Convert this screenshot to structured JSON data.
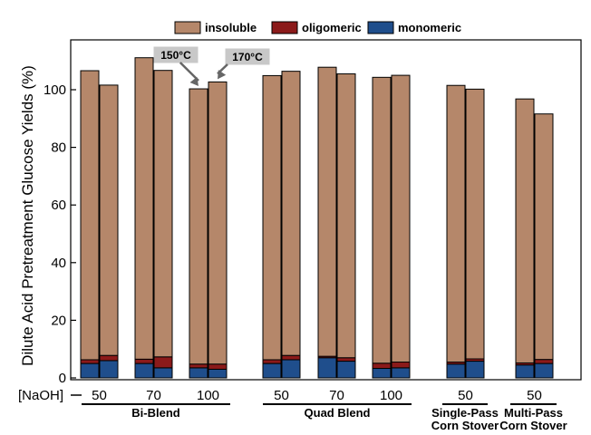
{
  "chart_data": {
    "type": "bar",
    "stacked": true,
    "ylabel": "Dilute Acid Pretreatment Glucose Yields (%)",
    "ylim": [
      0,
      115
    ],
    "yticks": [
      0,
      20,
      40,
      60,
      80,
      100
    ],
    "legend": {
      "placement": "top",
      "entries": [
        {
          "name": "insoluble",
          "color": "#b5876a"
        },
        {
          "name": "oligomeric",
          "color": "#8b1a1a"
        },
        {
          "name": "monomeric",
          "color": "#1f4e8c"
        }
      ]
    },
    "naoh_label": "[NaOH]",
    "bars": [
      {
        "group": "Bi-Blend",
        "naoh": "50",
        "temp": "150",
        "monomeric": 5.0,
        "oligomeric": 1.3,
        "insoluble": 100.3
      },
      {
        "group": "Bi-Blend",
        "naoh": "50",
        "temp": "170",
        "monomeric": 6.0,
        "oligomeric": 1.8,
        "insoluble": 93.8
      },
      {
        "group": "Bi-Blend",
        "naoh": "70",
        "temp": "150",
        "monomeric": 5.0,
        "oligomeric": 1.5,
        "insoluble": 104.6
      },
      {
        "group": "Bi-Blend",
        "naoh": "70",
        "temp": "170",
        "monomeric": 3.5,
        "oligomeric": 3.8,
        "insoluble": 99.4
      },
      {
        "group": "Bi-Blend",
        "naoh": "100",
        "temp": "150",
        "monomeric": 3.5,
        "oligomeric": 1.3,
        "insoluble": 95.5
      },
      {
        "group": "Bi-Blend",
        "naoh": "100",
        "temp": "170",
        "monomeric": 3.0,
        "oligomeric": 1.8,
        "insoluble": 97.9
      },
      {
        "group": "Quad Blend",
        "naoh": "50",
        "temp": "150",
        "monomeric": 5.0,
        "oligomeric": 1.3,
        "insoluble": 98.6
      },
      {
        "group": "Quad Blend",
        "naoh": "50",
        "temp": "170",
        "monomeric": 6.3,
        "oligomeric": 1.5,
        "insoluble": 98.6
      },
      {
        "group": "Quad Blend",
        "naoh": "70",
        "temp": "150",
        "monomeric": 7.0,
        "oligomeric": 0.5,
        "insoluble": 100.3
      },
      {
        "group": "Quad Blend",
        "naoh": "70",
        "temp": "170",
        "monomeric": 5.8,
        "oligomeric": 1.2,
        "insoluble": 98.5
      },
      {
        "group": "Quad Blend",
        "naoh": "100",
        "temp": "150",
        "monomeric": 3.3,
        "oligomeric": 1.8,
        "insoluble": 99.2
      },
      {
        "group": "Quad Blend",
        "naoh": "100",
        "temp": "170",
        "monomeric": 3.5,
        "oligomeric": 2.0,
        "insoluble": 99.5
      },
      {
        "group": "Single-Pass Corn Stover",
        "naoh": "50",
        "temp": "150",
        "monomeric": 4.8,
        "oligomeric": 0.7,
        "insoluble": 96.0
      },
      {
        "group": "Single-Pass Corn Stover",
        "naoh": "50",
        "temp": "170",
        "monomeric": 5.8,
        "oligomeric": 0.8,
        "insoluble": 93.6
      },
      {
        "group": "Multi-Pass Corn Stover",
        "naoh": "50",
        "temp": "150",
        "monomeric": 4.5,
        "oligomeric": 0.7,
        "insoluble": 91.6
      },
      {
        "group": "Multi-Pass Corn Stover",
        "naoh": "50",
        "temp": "170",
        "monomeric": 5.0,
        "oligomeric": 1.4,
        "insoluble": 85.2
      }
    ],
    "groups": [
      {
        "lines": [
          "Bi-Blend"
        ]
      },
      {
        "lines": [
          "Quad Blend"
        ]
      },
      {
        "lines": [
          "Single-Pass",
          "Corn Stover"
        ]
      },
      {
        "lines": [
          "Multi-Pass",
          "Corn Stover"
        ]
      }
    ],
    "naoh_ticks": [
      "50",
      "70",
      "100",
      "50",
      "70",
      "100",
      "50",
      "50"
    ],
    "annotations": [
      {
        "text": "150°C",
        "bar_index": 4
      },
      {
        "text": "170°C",
        "bar_index": 5
      }
    ]
  }
}
